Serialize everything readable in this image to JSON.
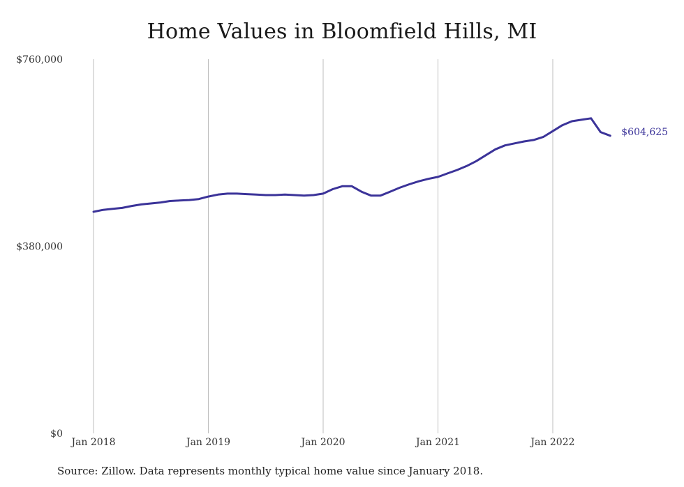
{
  "chart_data": {
    "type": "line",
    "title": "Home Values in Bloomfield Hills, MI",
    "xlabel": "",
    "ylabel": "",
    "ylim": [
      0,
      760000
    ],
    "y_ticks": [
      {
        "value": 0,
        "label": "$0"
      },
      {
        "value": 380000,
        "label": "$380,000"
      },
      {
        "value": 760000,
        "label": "$760,000"
      }
    ],
    "x_ticks": [
      {
        "month_index": 0,
        "label": "Jan 2018"
      },
      {
        "month_index": 12,
        "label": "Jan 2019"
      },
      {
        "month_index": 24,
        "label": "Jan 2020"
      },
      {
        "month_index": 36,
        "label": "Jan 2021"
      },
      {
        "month_index": 48,
        "label": "Jan 2022"
      }
    ],
    "grid": "vertical",
    "line_color": "#3b3399",
    "end_label": "$604,625",
    "series": [
      {
        "x": [
          "2018-01",
          "2018-02",
          "2018-03",
          "2018-04",
          "2018-05",
          "2018-06",
          "2018-07",
          "2018-08",
          "2018-09",
          "2018-10",
          "2018-11",
          "2018-12",
          "2019-01",
          "2019-02",
          "2019-03",
          "2019-04",
          "2019-05",
          "2019-06",
          "2019-07",
          "2019-08",
          "2019-09",
          "2019-10",
          "2019-11",
          "2019-12",
          "2020-01",
          "2020-02",
          "2020-03",
          "2020-04",
          "2020-05",
          "2020-06",
          "2020-07",
          "2020-08",
          "2020-09",
          "2020-10",
          "2020-11",
          "2020-12",
          "2021-01",
          "2021-02",
          "2021-03",
          "2021-04",
          "2021-05",
          "2021-06",
          "2021-07",
          "2021-08",
          "2021-09",
          "2021-10",
          "2021-11",
          "2021-12",
          "2022-01",
          "2022-02",
          "2022-03",
          "2022-04",
          "2022-05",
          "2022-06",
          "2022-07"
        ],
        "values": [
          450000,
          454000,
          456000,
          458000,
          462000,
          465000,
          467000,
          469000,
          472000,
          473000,
          474000,
          476000,
          481000,
          485000,
          487000,
          487000,
          486000,
          485000,
          484000,
          484000,
          485000,
          484000,
          483000,
          484000,
          487000,
          496000,
          502000,
          502000,
          491000,
          483000,
          483000,
          491000,
          499000,
          506000,
          512000,
          517000,
          521000,
          528000,
          535000,
          543000,
          553000,
          565000,
          577000,
          585000,
          589000,
          593000,
          596000,
          602000,
          614000,
          626000,
          634000,
          637000,
          640000,
          612000,
          604625
        ]
      }
    ]
  },
  "footer": {
    "source": "Source: Zillow. Data represents monthly typical home value since January 2018."
  }
}
